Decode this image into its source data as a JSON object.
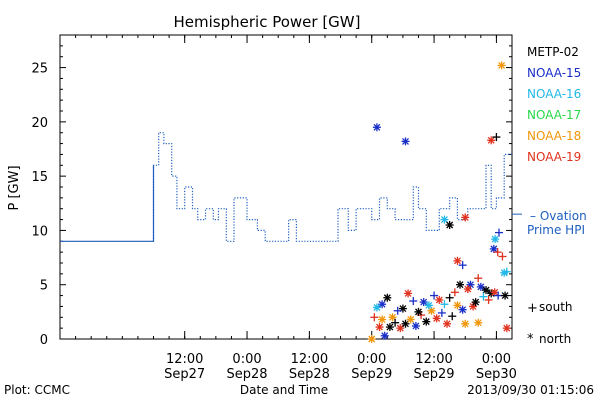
{
  "chart_data": {
    "type": "scatter",
    "title": "Hemispheric Power [GW]",
    "ylabel": "P [GW]",
    "xlabel": "Date and Time",
    "x_range": [
      "2013-09-26T12:00",
      "2013-09-30T03:00"
    ],
    "ylim": [
      0,
      28
    ],
    "grid": false,
    "y_ticks": [
      0,
      5,
      10,
      15,
      20,
      25
    ],
    "x_ticks": [
      {
        "time": "2013-09-27T12:00",
        "line1": "12:00",
        "line2": "Sep27"
      },
      {
        "time": "2013-09-28T00:00",
        "line1": "0:00",
        "line2": "Sep28"
      },
      {
        "time": "2013-09-28T12:00",
        "line1": "12:00",
        "line2": "Sep28"
      },
      {
        "time": "2013-09-29T00:00",
        "line1": "0:00",
        "line2": "Sep29"
      },
      {
        "time": "2013-09-29T12:00",
        "line1": "12:00",
        "line2": "Sep29"
      },
      {
        "time": "2013-09-30T00:00",
        "line1": "0:00",
        "line2": "Sep30"
      }
    ],
    "legend": [
      {
        "name": "METP-02",
        "color": "#000000"
      },
      {
        "name": "NOAA-15",
        "color": "#1a2fc8"
      },
      {
        "name": "NOAA-16",
        "color": "#22b8e8"
      },
      {
        "name": "NOAA-17",
        "color": "#28d84a"
      },
      {
        "name": "NOAA-18",
        "color": "#f0960a"
      },
      {
        "name": "NOAA-19",
        "color": "#e0321e"
      }
    ],
    "line_series": {
      "name": "– Ovation Prime HPI",
      "label_line1": "– Ovation",
      "label_line2": "Prime HPI",
      "color": "#1f5fbf",
      "points": [
        [
          "2013-09-26T12:00",
          9
        ],
        [
          "2013-09-27T06:00",
          9
        ],
        [
          "2013-09-27T06:00",
          16
        ],
        [
          "2013-09-27T07:00",
          16
        ],
        [
          "2013-09-27T07:00",
          19
        ],
        [
          "2013-09-27T08:00",
          19
        ],
        [
          "2013-09-27T08:00",
          18
        ],
        [
          "2013-09-27T09:30",
          18
        ],
        [
          "2013-09-27T09:30",
          15
        ],
        [
          "2013-09-27T10:30",
          15
        ],
        [
          "2013-09-27T10:30",
          12
        ],
        [
          "2013-09-27T12:00",
          12
        ],
        [
          "2013-09-27T12:00",
          14
        ],
        [
          "2013-09-27T13:30",
          14
        ],
        [
          "2013-09-27T13:30",
          12
        ],
        [
          "2013-09-27T14:30",
          12
        ],
        [
          "2013-09-27T14:30",
          11
        ],
        [
          "2013-09-27T16:00",
          11
        ],
        [
          "2013-09-27T16:00",
          12
        ],
        [
          "2013-09-27T17:30",
          12
        ],
        [
          "2013-09-27T17:30",
          11
        ],
        [
          "2013-09-27T18:30",
          11
        ],
        [
          "2013-09-27T18:30",
          12
        ],
        [
          "2013-09-27T20:00",
          12
        ],
        [
          "2013-09-27T20:00",
          9
        ],
        [
          "2013-09-27T21:30",
          9
        ],
        [
          "2013-09-27T21:30",
          13
        ],
        [
          "2013-09-28T00:00",
          13
        ],
        [
          "2013-09-28T00:00",
          11
        ],
        [
          "2013-09-28T02:00",
          11
        ],
        [
          "2013-09-28T02:00",
          10
        ],
        [
          "2013-09-28T03:30",
          10
        ],
        [
          "2013-09-28T03:30",
          9
        ],
        [
          "2013-09-28T08:00",
          9
        ],
        [
          "2013-09-28T08:00",
          11
        ],
        [
          "2013-09-28T09:30",
          11
        ],
        [
          "2013-09-28T09:30",
          9
        ],
        [
          "2013-09-28T17:30",
          9
        ],
        [
          "2013-09-28T17:30",
          12
        ],
        [
          "2013-09-28T19:30",
          12
        ],
        [
          "2013-09-28T19:30",
          10
        ],
        [
          "2013-09-28T21:00",
          10
        ],
        [
          "2013-09-28T21:00",
          12
        ],
        [
          "2013-09-29T00:00",
          12
        ],
        [
          "2013-09-29T00:00",
          11
        ],
        [
          "2013-09-29T01:30",
          11
        ],
        [
          "2013-09-29T01:30",
          13
        ],
        [
          "2013-09-29T03:00",
          13
        ],
        [
          "2013-09-29T03:00",
          12
        ],
        [
          "2013-09-29T04:30",
          12
        ],
        [
          "2013-09-29T04:30",
          11
        ],
        [
          "2013-09-29T08:00",
          11
        ],
        [
          "2013-09-29T08:00",
          14
        ],
        [
          "2013-09-29T09:00",
          14
        ],
        [
          "2013-09-29T09:00",
          12
        ],
        [
          "2013-09-29T10:30",
          12
        ],
        [
          "2013-09-29T10:30",
          10
        ],
        [
          "2013-09-29T13:00",
          10
        ],
        [
          "2013-09-29T13:00",
          12
        ],
        [
          "2013-09-29T15:00",
          12
        ],
        [
          "2013-09-29T15:00",
          13
        ],
        [
          "2013-09-29T16:30",
          13
        ],
        [
          "2013-09-29T16:30",
          11
        ],
        [
          "2013-09-29T18:30",
          11
        ],
        [
          "2013-09-29T18:30",
          12
        ],
        [
          "2013-09-29T22:00",
          12
        ],
        [
          "2013-09-29T22:00",
          16
        ],
        [
          "2013-09-29T23:00",
          16
        ],
        [
          "2013-09-29T23:00",
          12
        ],
        [
          "2013-09-30T00:00",
          12
        ],
        [
          "2013-09-30T00:00",
          13
        ],
        [
          "2013-09-30T01:30",
          13
        ],
        [
          "2013-09-30T01:30",
          17
        ],
        [
          "2013-09-30T03:00",
          17
        ]
      ]
    },
    "scatter": [
      {
        "t": "2013-09-29T01:00",
        "v": 19.5,
        "c": "#1a2fc8",
        "m": "north"
      },
      {
        "t": "2013-09-29T06:30",
        "v": 18.2,
        "c": "#1a2fc8",
        "m": "north"
      },
      {
        "t": "2013-09-29T23:00",
        "v": 18.3,
        "c": "#e0321e",
        "m": "north"
      },
      {
        "t": "2013-09-30T00:00",
        "v": 18.6,
        "c": "#000000",
        "m": "south"
      },
      {
        "t": "2013-09-30T01:00",
        "v": 25.2,
        "c": "#f0960a",
        "m": "north"
      },
      {
        "t": "2013-09-29T14:00",
        "v": 11.0,
        "c": "#22b8e8",
        "m": "north"
      },
      {
        "t": "2013-09-29T18:00",
        "v": 11.2,
        "c": "#e0321e",
        "m": "north"
      },
      {
        "t": "2013-09-29T15:00",
        "v": 10.5,
        "c": "#000000",
        "m": "north"
      },
      {
        "t": "2013-09-29T23:30",
        "v": 8.3,
        "c": "#1a2fc8",
        "m": "north"
      },
      {
        "t": "2013-09-30T00:30",
        "v": 9.8,
        "c": "#1a2fc8",
        "m": "south"
      },
      {
        "t": "2013-09-29T23:45",
        "v": 9.2,
        "c": "#22b8e8",
        "m": "north"
      },
      {
        "t": "2013-09-30T00:15",
        "v": 8.0,
        "c": "#e0321e",
        "m": "south"
      },
      {
        "t": "2013-09-30T01:10",
        "v": 7.6,
        "c": "#e0321e",
        "m": "south"
      },
      {
        "t": "2013-09-29T16:30",
        "v": 7.2,
        "c": "#e0321e",
        "m": "north"
      },
      {
        "t": "2013-09-29T17:30",
        "v": 6.8,
        "c": "#1a2fc8",
        "m": "south"
      },
      {
        "t": "2013-09-30T01:30",
        "v": 6.1,
        "c": "#22b8e8",
        "m": "north"
      },
      {
        "t": "2013-09-30T02:00",
        "v": 6.2,
        "c": "#22b8e8",
        "m": "south"
      },
      {
        "t": "2013-09-29T19:00",
        "v": 5.0,
        "c": "#1a2fc8",
        "m": "north"
      },
      {
        "t": "2013-09-29T18:30",
        "v": 4.6,
        "c": "#e0321e",
        "m": "north"
      },
      {
        "t": "2013-09-29T20:30",
        "v": 5.6,
        "c": "#e0321e",
        "m": "south"
      },
      {
        "t": "2013-09-29T21:00",
        "v": 4.8,
        "c": "#1a2fc8",
        "m": "north"
      },
      {
        "t": "2013-09-29T22:00",
        "v": 4.5,
        "c": "#000000",
        "m": "north"
      },
      {
        "t": "2013-09-29T16:00",
        "v": 4.3,
        "c": "#e0321e",
        "m": "south"
      },
      {
        "t": "2013-09-29T17:00",
        "v": 5.0,
        "c": "#000000",
        "m": "north"
      },
      {
        "t": "2013-09-29T23:00",
        "v": 4.2,
        "c": "#000000",
        "m": "north"
      },
      {
        "t": "2013-09-29T23:40",
        "v": 4.3,
        "c": "#e0321e",
        "m": "north"
      },
      {
        "t": "2013-09-30T00:20",
        "v": 4.0,
        "c": "#1a2fc8",
        "m": "south"
      },
      {
        "t": "2013-09-30T01:40",
        "v": 4.0,
        "c": "#000000",
        "m": "north"
      },
      {
        "t": "2013-09-29T12:00",
        "v": 4.0,
        "c": "#1a2fc8",
        "m": "south"
      },
      {
        "t": "2013-09-29T13:00",
        "v": 3.6,
        "c": "#e0321e",
        "m": "north"
      },
      {
        "t": "2013-09-29T14:00",
        "v": 3.2,
        "c": "#22b8e8",
        "m": "south"
      },
      {
        "t": "2013-09-29T15:00",
        "v": 3.8,
        "c": "#000000",
        "m": "south"
      },
      {
        "t": "2013-09-29T10:00",
        "v": 3.4,
        "c": "#1a2fc8",
        "m": "north"
      },
      {
        "t": "2013-09-29T08:00",
        "v": 3.5,
        "c": "#1a2fc8",
        "m": "south"
      },
      {
        "t": "2013-09-29T07:00",
        "v": 4.2,
        "c": "#e0321e",
        "m": "north"
      },
      {
        "t": "2013-09-29T06:00",
        "v": 2.8,
        "c": "#000000",
        "m": "north"
      },
      {
        "t": "2013-09-29T05:00",
        "v": 2.6,
        "c": "#1a2fc8",
        "m": "south"
      },
      {
        "t": "2013-09-29T03:00",
        "v": 3.8,
        "c": "#000000",
        "m": "north"
      },
      {
        "t": "2013-09-29T02:00",
        "v": 3.2,
        "c": "#1a2fc8",
        "m": "north"
      },
      {
        "t": "2013-09-29T01:00",
        "v": 2.9,
        "c": "#22b8e8",
        "m": "north"
      },
      {
        "t": "2013-09-29T00:30",
        "v": 2.0,
        "c": "#e0321e",
        "m": "south"
      },
      {
        "t": "2013-09-29T01:30",
        "v": 1.1,
        "c": "#e0321e",
        "m": "north"
      },
      {
        "t": "2013-09-29T02:30",
        "v": 0.3,
        "c": "#1a2fc8",
        "m": "north"
      },
      {
        "t": "2013-09-29T00:00",
        "v": 0.0,
        "c": "#f0960a",
        "m": "north"
      },
      {
        "t": "2013-09-29T04:00",
        "v": 2.0,
        "c": "#f0960a",
        "m": "north"
      },
      {
        "t": "2013-09-29T04:30",
        "v": 1.5,
        "c": "#000000",
        "m": "south"
      },
      {
        "t": "2013-09-29T05:30",
        "v": 1.0,
        "c": "#e0321e",
        "m": "north"
      },
      {
        "t": "2013-09-29T06:30",
        "v": 1.4,
        "c": "#000000",
        "m": "north"
      },
      {
        "t": "2013-09-29T07:30",
        "v": 1.8,
        "c": "#f0960a",
        "m": "north"
      },
      {
        "t": "2013-09-29T08:30",
        "v": 1.2,
        "c": "#1a2fc8",
        "m": "north"
      },
      {
        "t": "2013-09-29T09:30",
        "v": 2.2,
        "c": "#e0321e",
        "m": "south"
      },
      {
        "t": "2013-09-29T10:30",
        "v": 1.6,
        "c": "#000000",
        "m": "north"
      },
      {
        "t": "2013-09-29T11:30",
        "v": 2.6,
        "c": "#f0960a",
        "m": "north"
      },
      {
        "t": "2013-09-29T12:30",
        "v": 1.9,
        "c": "#e0321e",
        "m": "north"
      },
      {
        "t": "2013-09-29T13:30",
        "v": 2.4,
        "c": "#1a2fc8",
        "m": "south"
      },
      {
        "t": "2013-09-29T14:30",
        "v": 1.4,
        "c": "#e0321e",
        "m": "north"
      },
      {
        "t": "2013-09-29T15:30",
        "v": 2.1,
        "c": "#000000",
        "m": "south"
      },
      {
        "t": "2013-09-29T16:30",
        "v": 3.1,
        "c": "#f0960a",
        "m": "north"
      },
      {
        "t": "2013-09-29T17:30",
        "v": 2.7,
        "c": "#1a2fc8",
        "m": "north"
      },
      {
        "t": "2013-09-29T18:00",
        "v": 1.4,
        "c": "#f0960a",
        "m": "north"
      },
      {
        "t": "2013-09-29T19:30",
        "v": 3.0,
        "c": "#e0321e",
        "m": "north"
      },
      {
        "t": "2013-09-29T20:00",
        "v": 3.4,
        "c": "#000000",
        "m": "north"
      },
      {
        "t": "2013-09-29T20:30",
        "v": 1.5,
        "c": "#f0960a",
        "m": "north"
      },
      {
        "t": "2013-09-29T21:30",
        "v": 3.9,
        "c": "#22b8e8",
        "m": "south"
      },
      {
        "t": "2013-09-29T22:30",
        "v": 3.6,
        "c": "#e0321e",
        "m": "south"
      },
      {
        "t": "2013-09-30T02:00",
        "v": 1.0,
        "c": "#e0321e",
        "m": "north"
      },
      {
        "t": "2013-09-29T03:30",
        "v": 1.1,
        "c": "#000000",
        "m": "north"
      },
      {
        "t": "2013-09-29T02:00",
        "v": 1.8,
        "c": "#f0960a",
        "m": "north"
      },
      {
        "t": "2013-09-29T09:00",
        "v": 2.5,
        "c": "#000000",
        "m": "north"
      },
      {
        "t": "2013-09-29T11:00",
        "v": 3.1,
        "c": "#22b8e8",
        "m": "north"
      }
    ]
  },
  "legend_markers": {
    "south_symbol": "+",
    "south_label": "south",
    "north_symbol": "*",
    "north_label": "north"
  },
  "footer": {
    "left": "Plot: CCMC",
    "center": "Date and Time",
    "right": "2013/09/30 01:15:06"
  }
}
